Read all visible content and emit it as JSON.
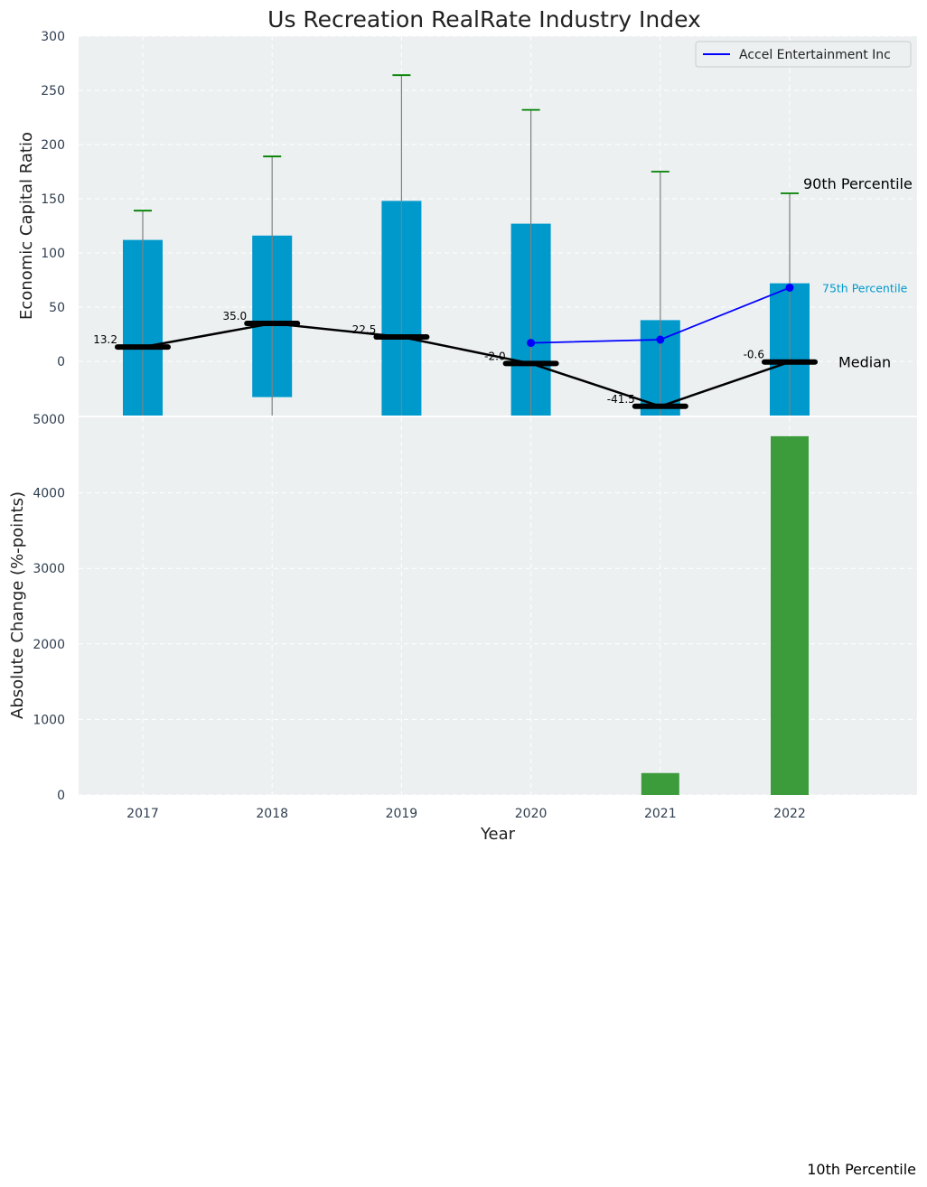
{
  "chart_data": {
    "type": "bar",
    "title": "Us Recreation RealRate Industry Index",
    "xlabel": "Year",
    "categories": [
      "2017",
      "2018",
      "2019",
      "2020",
      "2021",
      "2022"
    ],
    "top_panel": {
      "ylabel": "Economic Capital Ratio",
      "ylim": [
        -50,
        300
      ],
      "yticks": [
        300,
        250,
        200,
        150,
        100,
        50,
        0
      ],
      "bottom_tick_label": "5000",
      "grid": true,
      "bars_25_to_75": [
        {
          "low": -50,
          "high": 112
        },
        {
          "low": -33,
          "high": 116
        },
        {
          "low": -50,
          "high": 148
        },
        {
          "low": -50,
          "high": 127
        },
        {
          "low": -50,
          "high": 38
        },
        {
          "low": -50,
          "high": 72
        }
      ],
      "p10": [
        -50,
        -50,
        -50,
        -50,
        -50,
        -50
      ],
      "p90": [
        139,
        189,
        264,
        232,
        175,
        155
      ],
      "median": [
        13.2,
        35.0,
        22.5,
        -2.0,
        -41.5,
        -0.6
      ],
      "median_labels": [
        "13.2",
        "35.0",
        "22.5",
        "-2.0",
        "-41.5",
        "-0.6"
      ],
      "series": [
        {
          "name": "Accel Entertainment Inc",
          "x": [
            "2020",
            "2021",
            "2022"
          ],
          "values": [
            17,
            20,
            68
          ],
          "color": "#0000ff"
        }
      ],
      "annotations": {
        "p90": "90th Percentile",
        "p75": "75th Percentile",
        "median": "Median"
      },
      "legend_placement": "top-right"
    },
    "bottom_panel": {
      "ylabel": "Absolute Change (%-points)",
      "ylim": [
        0,
        5000
      ],
      "yticks": [
        4000,
        3000,
        2000,
        1000,
        0
      ],
      "values": [
        0,
        0,
        0,
        0,
        290,
        4750
      ],
      "grid": true
    },
    "extra_annotation": "10th Percentile",
    "colors": {
      "bar": "#0099cc",
      "change_bar": "#3c9c3c",
      "whisker": "#808080",
      "cap": "#008000",
      "median": "#000000",
      "axes_bg": "#ecf0f1",
      "grid": "#ffffff"
    }
  }
}
